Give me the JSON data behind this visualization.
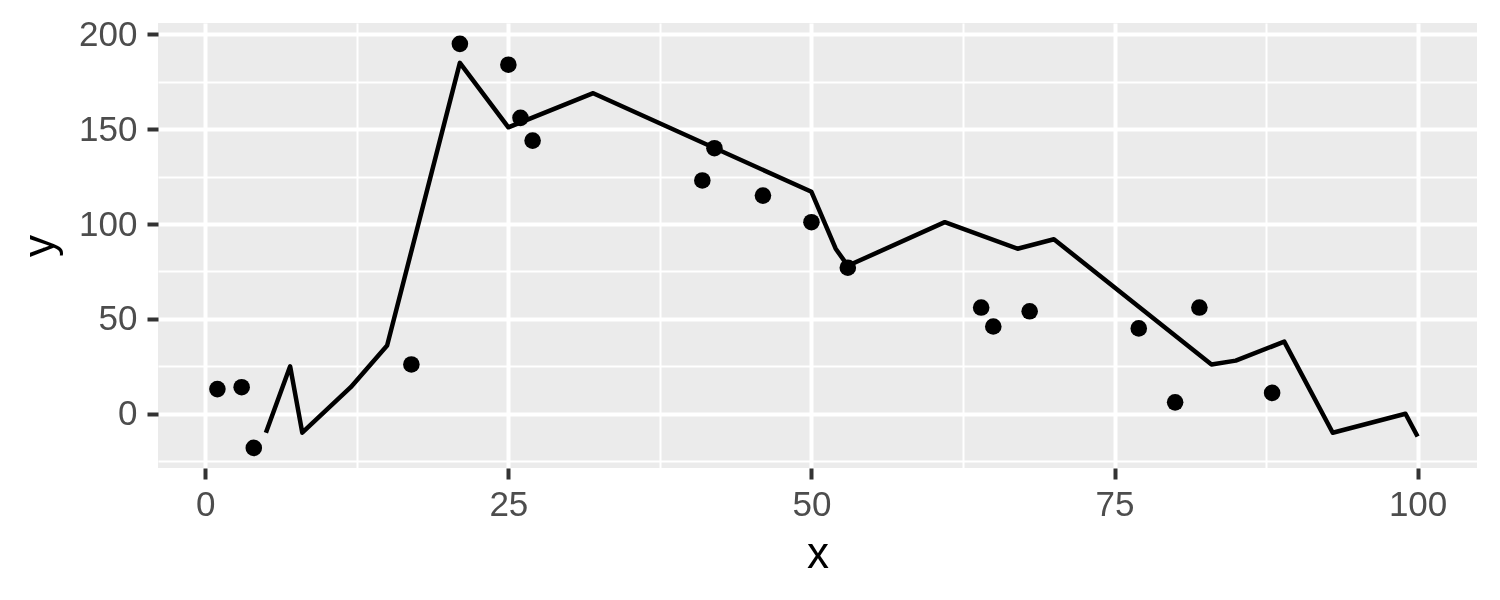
{
  "chart_data": {
    "type": "scatter",
    "xlabel": "x",
    "ylabel": "y",
    "xlim": [
      -3.9,
      104.9
    ],
    "ylim": [
      -28.6,
      206
    ],
    "xticks": [
      0,
      25,
      50,
      75,
      100
    ],
    "yticks": [
      0,
      50,
      100,
      150,
      200
    ],
    "grid": true,
    "series": [
      {
        "type": "line",
        "color": "#000000",
        "x": [
          5,
          7,
          8,
          12,
          15,
          21,
          25,
          32,
          50,
          52,
          53,
          61,
          67,
          70,
          83,
          85,
          89,
          93,
          99,
          100
        ],
        "values": [
          -10,
          25,
          -10,
          14,
          36,
          185,
          151,
          169,
          117,
          87,
          78,
          101,
          87,
          92,
          26,
          28,
          38,
          -10,
          0,
          -12
        ]
      },
      {
        "color": "#000000",
        "x": [
          1,
          3,
          4,
          17,
          21,
          25,
          26,
          27,
          41,
          42,
          46,
          50,
          53,
          64,
          65,
          68,
          77,
          80,
          82,
          88
        ],
        "values": [
          13,
          14,
          -18,
          26,
          195,
          184,
          156,
          144,
          123,
          140,
          115,
          101,
          77,
          56,
          46,
          54,
          45,
          6,
          56,
          11
        ]
      }
    ]
  }
}
